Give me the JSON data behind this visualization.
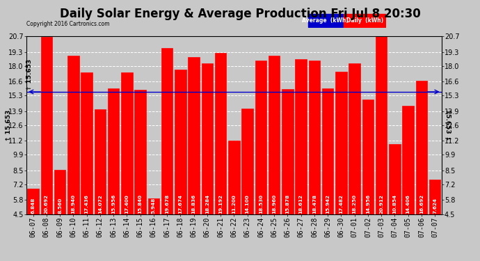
{
  "title": "Daily Solar Energy & Average Production Fri Jul 8 20:30",
  "copyright": "Copyright 2016 Cartronics.com",
  "categories": [
    "06-07",
    "06-08",
    "06-09",
    "06-10",
    "06-11",
    "06-12",
    "06-13",
    "06-14",
    "06-15",
    "06-16",
    "06-17",
    "06-18",
    "06-19",
    "06-20",
    "06-21",
    "06-22",
    "06-23",
    "06-24",
    "06-25",
    "06-26",
    "06-27",
    "06-28",
    "06-29",
    "06-30",
    "07-01",
    "07-02",
    "07-03",
    "07-04",
    "07-05",
    "07-06",
    "07-07"
  ],
  "values": [
    6.848,
    20.692,
    8.56,
    18.94,
    17.436,
    14.072,
    15.956,
    17.4,
    15.84,
    5.948,
    19.678,
    17.674,
    18.836,
    18.284,
    19.192,
    11.2,
    14.1,
    18.53,
    18.96,
    15.878,
    18.612,
    18.478,
    15.942,
    17.482,
    18.25,
    14.956,
    20.912,
    10.854,
    14.406,
    16.692,
    7.624
  ],
  "average": 15.653,
  "bar_color": "#ff0000",
  "average_line_color": "#0000cc",
  "background_color": "#c8c8c8",
  "plot_bg_color": "#c8c8c8",
  "grid_color": "#ffffff",
  "ylim_min": 4.5,
  "ylim_max": 20.7,
  "yticks": [
    4.5,
    5.8,
    7.2,
    8.5,
    9.9,
    11.2,
    12.6,
    13.9,
    15.3,
    16.6,
    18.0,
    19.3,
    20.7
  ],
  "legend_avg_bg": "#0000cc",
  "legend_daily_bg": "#ff0000",
  "avg_label": "15.653",
  "title_fontsize": 12,
  "tick_fontsize": 7,
  "value_fontsize": 5.2
}
